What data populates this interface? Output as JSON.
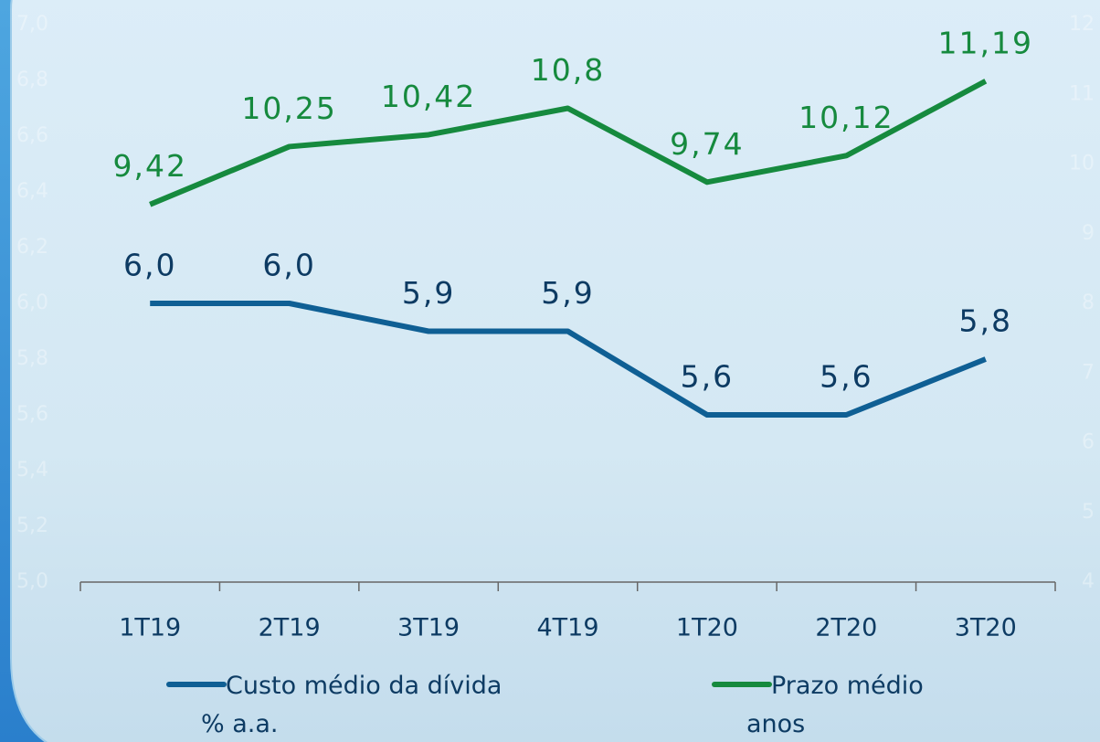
{
  "chart_data": {
    "type": "line",
    "categories": [
      "1T19",
      "2T19",
      "3T19",
      "4T19",
      "1T20",
      "2T20",
      "3T20"
    ],
    "series": [
      {
        "name": "Custo médio da dívida\n% a.a.",
        "color": "#0f5f94",
        "label_color": "#0d3b63",
        "values": [
          6.0,
          6.0,
          5.9,
          5.9,
          5.6,
          5.6,
          5.8
        ],
        "value_labels": [
          "6,0",
          "6,0",
          "5,9",
          "5,9",
          "5,6",
          "5,6",
          "5,8"
        ]
      },
      {
        "name": "Prazo médio\nanos",
        "color": "#168a3e",
        "label_color": "#168a3e",
        "axis": "y2",
        "values": [
          9.42,
          10.25,
          10.42,
          10.8,
          9.74,
          10.12,
          11.19
        ],
        "value_labels": [
          "9,42",
          "10,25",
          "10,42",
          "10,8",
          "9,74",
          "10,12",
          "11,19"
        ]
      }
    ],
    "ylim": [
      5.0,
      7.0
    ],
    "yticks": [
      {
        "value": 5.0,
        "label": "5,0"
      },
      {
        "value": 5.2,
        "label": "5,2"
      },
      {
        "value": 5.4,
        "label": "5,4"
      },
      {
        "value": 5.6,
        "label": "5,6"
      },
      {
        "value": 5.8,
        "label": "5,8"
      },
      {
        "value": 6.0,
        "label": "6,0"
      },
      {
        "value": 6.2,
        "label": "6,2"
      },
      {
        "value": 6.4,
        "label": "6,4"
      },
      {
        "value": 6.6,
        "label": "6,6"
      },
      {
        "value": 6.8,
        "label": "6,8"
      },
      {
        "value": 7.0,
        "label": "7,0"
      }
    ],
    "y2lim": [
      4,
      12
    ],
    "y2ticks": [
      4,
      5,
      6,
      7,
      8,
      9,
      10,
      11,
      12
    ],
    "grid": false
  }
}
